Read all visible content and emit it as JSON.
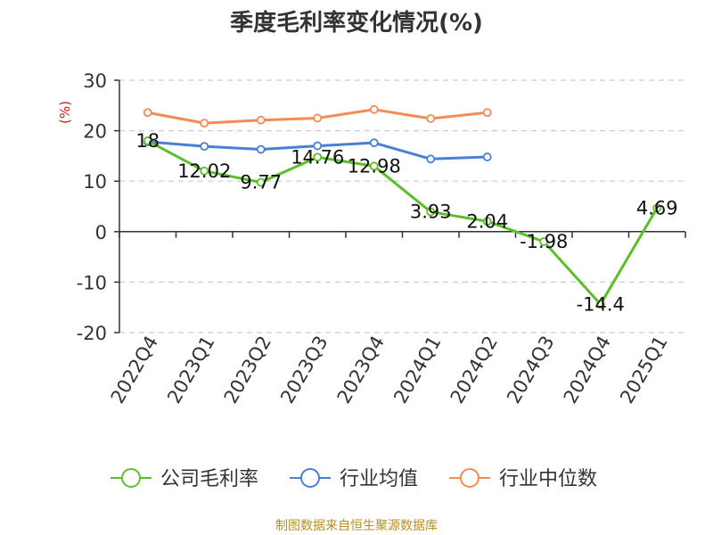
{
  "colors": {
    "company": "#5cbf2a",
    "industry_avg": "#4a7fd6",
    "industry_median": "#f28c55",
    "unit": "#cc1a1a",
    "source": "#b8901e",
    "grid": "#cccccc",
    "axis": "#333333"
  },
  "footer": {
    "source": "制图数据来自恒生聚源数据库"
  },
  "chart_data": {
    "type": "line",
    "title": "季度毛利率变化情况(%)",
    "unit": "(%)",
    "ylim": [
      -20,
      30
    ],
    "yticks": [
      -20,
      -10,
      0,
      10,
      20,
      30
    ],
    "grid": true,
    "legend_position": "bottom",
    "categories": [
      "2022Q4",
      "2023Q1",
      "2023Q2",
      "2023Q3",
      "2023Q4",
      "2024Q1",
      "2024Q2",
      "2024Q3",
      "2024Q4",
      "2025Q1"
    ],
    "series": [
      {
        "name": "公司毛利率",
        "color_key": "company",
        "values": [
          18,
          12.02,
          9.77,
          14.76,
          12.98,
          3.93,
          2.04,
          -1.98,
          -14.4,
          4.69
        ],
        "labels": [
          "18",
          "12.02",
          "9.77",
          "14.76",
          "12.98",
          "3.93",
          "2.04",
          "-1.98",
          "-14.4",
          "4.69"
        ]
      },
      {
        "name": "行业均值",
        "color_key": "industry_avg",
        "values": [
          17.8,
          16.9,
          16.3,
          17,
          17.6,
          14.4,
          14.8,
          null,
          null,
          null
        ]
      },
      {
        "name": "行业中位数",
        "color_key": "industry_median",
        "values": [
          23.6,
          21.5,
          22.1,
          22.5,
          24.2,
          22.4,
          23.6,
          null,
          null,
          null
        ]
      }
    ]
  }
}
